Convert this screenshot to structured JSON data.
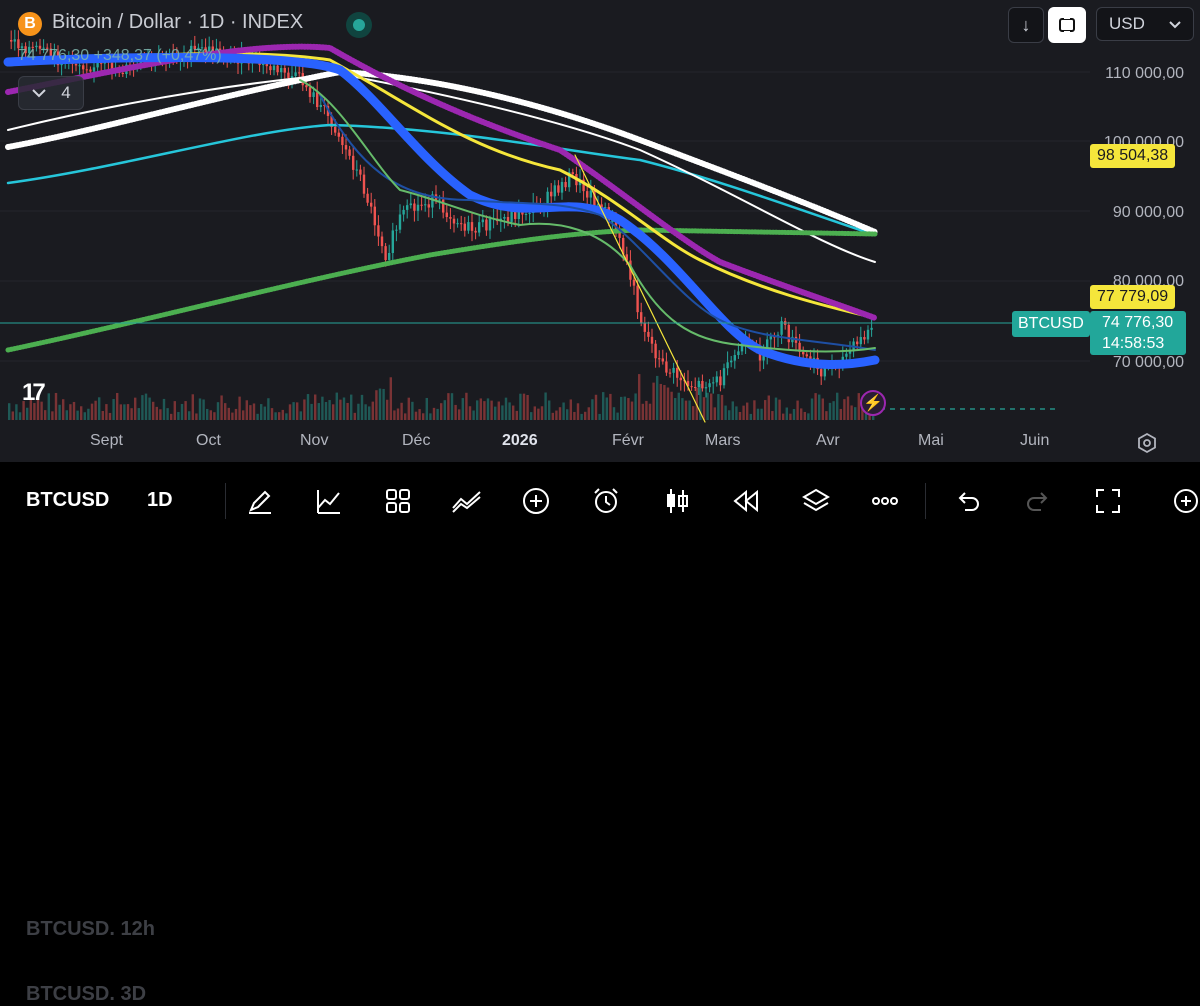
{
  "header": {
    "symbol_badge": "B",
    "title": "Bitcoin / Dollar · 1D · INDEX",
    "price_line": "74 776,30 +348,37 (+0,47%)",
    "indicators_count": "4",
    "down_arrow": "↓",
    "currency": "USD"
  },
  "price_axis": {
    "labels": [
      "110 000,00",
      "100 000,00",
      "90 000,00",
      "80 000,00",
      "70 000,00"
    ],
    "tag_upper": "98 504,38",
    "tag_middle": "77 779,09",
    "symbol_tag": "BTCUSD",
    "current_price": "74 776,30",
    "countdown": "14:58:53"
  },
  "time_axis": {
    "months": [
      "Sept",
      "Oct",
      "Nov",
      "Déc",
      "2026",
      "Févr",
      "Mars",
      "Avr",
      "Mai",
      "Juin"
    ]
  },
  "toolbar": {
    "symbol": "BTCUSD",
    "timeframe": "1D",
    "ghost_above": "BTCUSD.   12h",
    "ghost_below": "BTCUSD.   3D"
  },
  "colors": {
    "background": "#1a1b20",
    "up": "#26a69a",
    "down": "#ef5350",
    "ma_purple": "#9c27b0",
    "ma_blue": "#2962ff",
    "ma_white": "#ffffff",
    "ma_cyan": "#26c6da",
    "ma_green": "#4caf50",
    "ma_yellow": "#f5e63b"
  }
}
